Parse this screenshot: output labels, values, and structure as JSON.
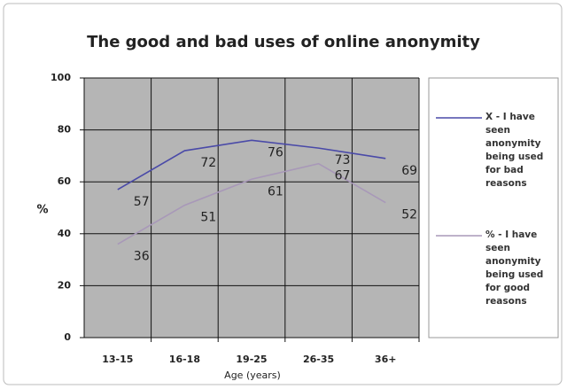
{
  "chart_data": {
    "type": "line",
    "title": "The good and bad uses of online anonymity",
    "x_label": "Age (years)",
    "y_label": "%",
    "categories": [
      "13-15",
      "16-18",
      "19-25",
      "26-35",
      "36+"
    ],
    "series": [
      {
        "name": "X - I have seen anonymity being used for bad reasons",
        "color": "#4a4aa8",
        "values": [
          57,
          72,
          76,
          73,
          69
        ]
      },
      {
        "name": "% - I have seen anonymity being used for good reasons",
        "color": "#a898b8",
        "values": [
          36,
          51,
          61,
          67,
          52
        ]
      }
    ],
    "ylim": [
      0,
      100
    ],
    "yticks": [
      0,
      20,
      40,
      60,
      80,
      100
    ],
    "grid": true
  }
}
